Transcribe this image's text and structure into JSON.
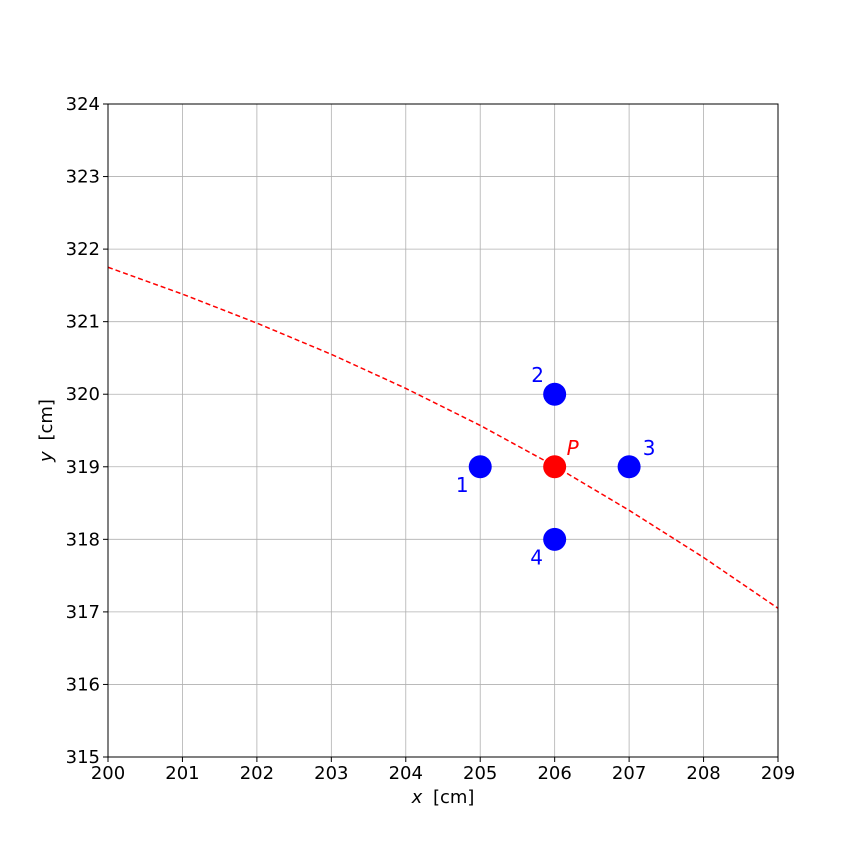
{
  "chart_data": {
    "type": "scatter",
    "xlabel": {
      "var": "x",
      "unit": "[cm]"
    },
    "ylabel": {
      "var": "y",
      "unit": "[cm]"
    },
    "xlim": [
      200,
      209
    ],
    "ylim": [
      315,
      324
    ],
    "xticks": [
      200,
      201,
      202,
      203,
      204,
      205,
      206,
      207,
      208,
      209
    ],
    "yticks": [
      315,
      316,
      317,
      318,
      319,
      320,
      321,
      322,
      323,
      324
    ],
    "grid": true,
    "points": [
      {
        "label": "1",
        "x": 205,
        "y": 319,
        "color": "#0000ff"
      },
      {
        "label": "2",
        "x": 206,
        "y": 320,
        "color": "#0000ff"
      },
      {
        "label": "3",
        "x": 207,
        "y": 319,
        "color": "#0000ff"
      },
      {
        "label": "4",
        "x": 206,
        "y": 318,
        "color": "#0000ff"
      },
      {
        "label": "P",
        "x": 206,
        "y": 319,
        "color": "#ff0000"
      }
    ],
    "curve": {
      "style": "dashed",
      "color": "#ff0000",
      "x": [
        200,
        201,
        202,
        203,
        204,
        205,
        206,
        207,
        208,
        209
      ],
      "y": [
        321.75,
        321.38,
        320.98,
        320.55,
        320.08,
        319.57,
        319.01,
        318.4,
        317.75,
        317.05
      ]
    }
  }
}
